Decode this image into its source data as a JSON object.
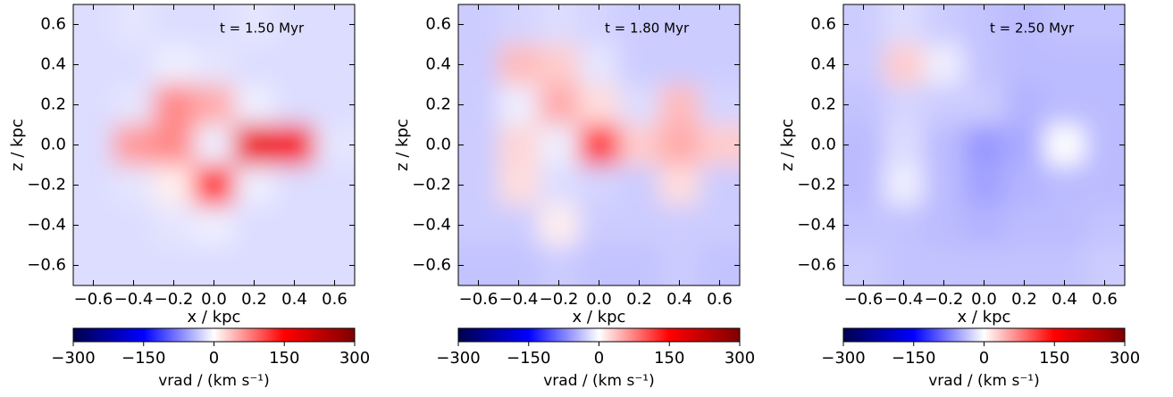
{
  "chart_data": [
    {
      "type": "heatmap",
      "annotation": "t = 1.50 Myr",
      "xlabel": "x / kpc",
      "ylabel": "z / kpc",
      "x": [
        -0.6,
        -0.4,
        -0.2,
        0,
        0.2,
        0.4,
        0.6
      ],
      "y": [
        0.6,
        0.4,
        0.2,
        0,
        -0.2,
        -0.4,
        -0.6
      ],
      "values": [
        [
          -20,
          -15,
          -20,
          -20,
          -15,
          -20,
          -20
        ],
        [
          -20,
          -20,
          -10,
          -15,
          -20,
          -20,
          -20
        ],
        [
          -20,
          -15,
          70,
          50,
          -10,
          -20,
          -20
        ],
        [
          -20,
          60,
          70,
          -10,
          170,
          160,
          -15
        ],
        [
          -20,
          -15,
          10,
          130,
          -10,
          -20,
          -20
        ],
        [
          -20,
          -20,
          -15,
          -10,
          -20,
          -20,
          -20
        ],
        [
          -20,
          -20,
          -20,
          -20,
          -20,
          -20,
          -20
        ]
      ],
      "xlim": [
        -0.7,
        0.7
      ],
      "ylim": [
        -0.7,
        0.7
      ],
      "xticks": [
        {
          "value": -0.6,
          "label": "−0.6"
        },
        {
          "value": -0.4,
          "label": "−0.4"
        },
        {
          "value": -0.2,
          "label": "−0.2"
        },
        {
          "value": 0,
          "label": "0.0"
        },
        0.2,
        0.4,
        0.6
      ],
      "yticks": [
        {
          "value": -0.6,
          "label": "−0.6"
        },
        {
          "value": -0.4,
          "label": "−0.4"
        },
        {
          "value": -0.2,
          "label": "−0.2"
        },
        {
          "value": 0,
          "label": "0.0"
        },
        0.2,
        0.4,
        0.6
      ],
      "colorbar": {
        "label": "vrad / (km s⁻¹)",
        "clim": [
          -300,
          300
        ],
        "colors": [
          "#00004d",
          "#0000ff",
          "#ffffff",
          "#ff0000",
          "#800000"
        ],
        "ticks": [
          {
            "value": -300,
            "label": "−300"
          },
          {
            "value": -150,
            "label": "−150"
          },
          0,
          150,
          300
        ]
      }
    },
    {
      "type": "heatmap",
      "annotation": "t = 1.80 Myr",
      "xlabel": "x / kpc",
      "ylabel": "z / kpc",
      "x": [
        -0.6,
        -0.4,
        -0.2,
        0,
        0.2,
        0.4,
        0.6
      ],
      "y": [
        0.6,
        0.4,
        0.2,
        0,
        -0.2,
        -0.4,
        -0.6
      ],
      "values": [
        [
          -30,
          -25,
          -20,
          -25,
          -30,
          -30,
          -30
        ],
        [
          -30,
          40,
          30,
          -15,
          -30,
          -30,
          -30
        ],
        [
          -30,
          -10,
          50,
          20,
          -20,
          40,
          -25
        ],
        [
          -30,
          25,
          -10,
          120,
          30,
          50,
          30
        ],
        [
          -30,
          20,
          -20,
          -25,
          -30,
          20,
          -30
        ],
        [
          -30,
          -30,
          10,
          -30,
          -30,
          -30,
          -30
        ],
        [
          -35,
          -35,
          -30,
          -35,
          -35,
          -30,
          -35
        ]
      ],
      "xlim": [
        -0.7,
        0.7
      ],
      "ylim": [
        -0.7,
        0.7
      ],
      "xticks": [
        {
          "value": -0.6,
          "label": "−0.6"
        },
        {
          "value": -0.4,
          "label": "−0.4"
        },
        {
          "value": -0.2,
          "label": "−0.2"
        },
        {
          "value": 0,
          "label": "0.0"
        },
        0.2,
        0.4,
        0.6
      ],
      "yticks": [
        {
          "value": -0.6,
          "label": "−0.6"
        },
        {
          "value": -0.4,
          "label": "−0.4"
        },
        {
          "value": -0.2,
          "label": "−0.2"
        },
        {
          "value": 0,
          "label": "0.0"
        },
        0.2,
        0.4,
        0.6
      ],
      "colorbar": {
        "label": "vrad / (km s⁻¹)",
        "clim": [
          -300,
          300
        ],
        "colors": [
          "#00004d",
          "#0000ff",
          "#ffffff",
          "#ff0000",
          "#800000"
        ],
        "ticks": [
          {
            "value": -300,
            "label": "−300"
          },
          {
            "value": -150,
            "label": "−150"
          },
          0,
          150,
          300
        ]
      }
    },
    {
      "type": "heatmap",
      "annotation": "t = 2.50 Myr",
      "xlabel": "x / kpc",
      "ylabel": "z / kpc",
      "x": [
        -0.6,
        -0.4,
        -0.2,
        0,
        0.2,
        0.4,
        0.6
      ],
      "y": [
        0.6,
        0.4,
        0.2,
        0,
        -0.2,
        -0.4,
        -0.6
      ],
      "values": [
        [
          -30,
          -20,
          -30,
          -35,
          -40,
          -35,
          -35
        ],
        [
          -30,
          30,
          -10,
          -35,
          -40,
          -40,
          -40
        ],
        [
          -35,
          -25,
          -30,
          -30,
          -45,
          -40,
          -40
        ],
        [
          -40,
          -20,
          -40,
          -60,
          -50,
          0,
          -40
        ],
        [
          -40,
          -10,
          -40,
          -55,
          -45,
          -40,
          -40
        ],
        [
          -35,
          -35,
          -40,
          -45,
          -40,
          -40,
          -35
        ],
        [
          -30,
          -35,
          -35,
          -35,
          -35,
          -35,
          -30
        ]
      ],
      "xlim": [
        -0.7,
        0.7
      ],
      "ylim": [
        -0.7,
        0.7
      ],
      "xticks": [
        {
          "value": -0.6,
          "label": "−0.6"
        },
        {
          "value": -0.4,
          "label": "−0.4"
        },
        {
          "value": -0.2,
          "label": "−0.2"
        },
        {
          "value": 0,
          "label": "0.0"
        },
        0.2,
        0.4,
        0.6
      ],
      "yticks": [
        {
          "value": -0.6,
          "label": "−0.6"
        },
        {
          "value": -0.4,
          "label": "−0.4"
        },
        {
          "value": -0.2,
          "label": "−0.2"
        },
        {
          "value": 0,
          "label": "0.0"
        },
        0.2,
        0.4,
        0.6
      ],
      "colorbar": {
        "label": "vrad / (km s⁻¹)",
        "clim": [
          -300,
          300
        ],
        "colors": [
          "#00004d",
          "#0000ff",
          "#ffffff",
          "#ff0000",
          "#800000"
        ],
        "ticks": [
          {
            "value": -300,
            "label": "−300"
          },
          {
            "value": -150,
            "label": "−150"
          },
          0,
          150,
          300
        ]
      }
    }
  ]
}
